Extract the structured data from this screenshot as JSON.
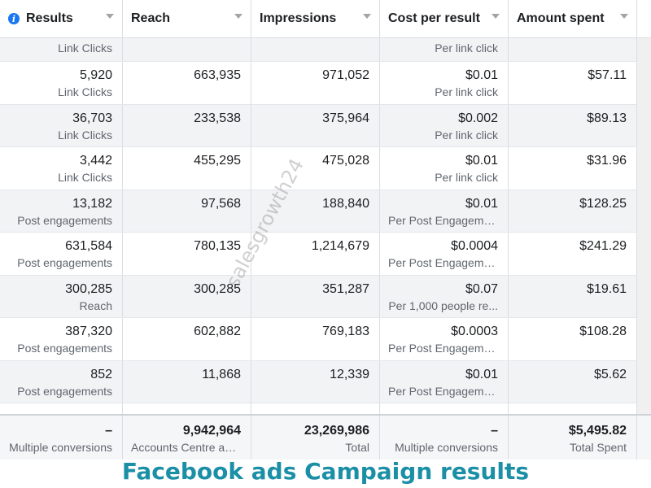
{
  "columns": [
    "Results",
    "Reach",
    "Impressions",
    "Cost per result",
    "Amount spent"
  ],
  "rows": [
    {
      "results": "",
      "results_sub": "Link Clicks",
      "reach": "",
      "impressions": "",
      "cost": "",
      "cost_sub": "Per link click",
      "spent": ""
    },
    {
      "results": "5,920",
      "results_sub": "Link Clicks",
      "reach": "663,935",
      "impressions": "971,052",
      "cost": "$0.01",
      "cost_sub": "Per link click",
      "spent": "$57.11"
    },
    {
      "results": "36,703",
      "results_sub": "Link Clicks",
      "reach": "233,538",
      "impressions": "375,964",
      "cost": "$0.002",
      "cost_sub": "Per link click",
      "spent": "$89.13"
    },
    {
      "results": "3,442",
      "results_sub": "Link Clicks",
      "reach": "455,295",
      "impressions": "475,028",
      "cost": "$0.01",
      "cost_sub": "Per link click",
      "spent": "$31.96"
    },
    {
      "results": "13,182",
      "results_sub": "Post engagements",
      "reach": "97,568",
      "impressions": "188,840",
      "cost": "$0.01",
      "cost_sub": "Per Post Engageme...",
      "spent": "$128.25"
    },
    {
      "results": "631,584",
      "results_sub": "Post engagements",
      "reach": "780,135",
      "impressions": "1,214,679",
      "cost": "$0.0004",
      "cost_sub": "Per Post Engageme...",
      "spent": "$241.29"
    },
    {
      "results": "300,285",
      "results_sub": "Reach",
      "reach": "300,285",
      "impressions": "351,287",
      "cost": "$0.07",
      "cost_sub": "Per 1,000 people re...",
      "spent": "$19.61"
    },
    {
      "results": "387,320",
      "results_sub": "Post engagements",
      "reach": "602,882",
      "impressions": "769,183",
      "cost": "$0.0003",
      "cost_sub": "Per Post Engageme...",
      "spent": "$108.28"
    },
    {
      "results": "852",
      "results_sub": "Post engagements",
      "reach": "11,868",
      "impressions": "12,339",
      "cost": "$0.01",
      "cost_sub": "Per Post Engageme...",
      "spent": "$5.62"
    }
  ],
  "footer": {
    "results": "–",
    "results_sub": "Multiple conversions",
    "reach": "9,942,964",
    "reach_sub": "Accounts Centre acc...",
    "impressions": "23,269,986",
    "impressions_sub": "Total",
    "cost": "–",
    "cost_sub": "Multiple conversions",
    "spent": "$5,495.82",
    "spent_sub": "Total Spent"
  },
  "caption": "Facebook ads Campaign results",
  "watermark": "salesgrowth24",
  "colors": {
    "caption": "#1b8fa6",
    "info_icon": "#1877f2",
    "alt_row": "#f2f3f5"
  }
}
